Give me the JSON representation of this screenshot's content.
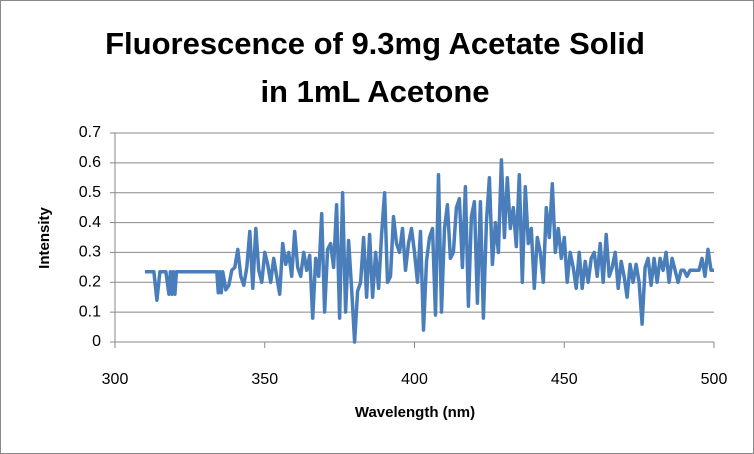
{
  "chart_data": {
    "type": "line",
    "title": [
      "Fluorescence of 9.3mg Acetate Solid",
      "in 1mL Acetone"
    ],
    "x_label": "Wavelength (nm)",
    "y_label": "Intensity",
    "xlim": [
      300,
      500
    ],
    "xticks": [
      300,
      350,
      400,
      450,
      500
    ],
    "ylim": [
      0,
      0.7
    ],
    "yticks": [
      0,
      0.1,
      0.2,
      0.3,
      0.4,
      0.5,
      0.6,
      0.7
    ],
    "grid": true,
    "x": [
      310,
      313,
      314,
      315,
      317,
      318,
      318.5,
      319,
      319.5,
      320,
      320.5,
      334,
      334.5,
      335,
      335.5,
      336,
      337,
      338,
      339,
      340,
      341,
      342,
      343,
      344,
      345,
      346,
      347,
      348,
      349,
      350,
      351,
      352,
      353,
      354,
      355,
      356,
      357,
      358,
      359,
      360,
      361,
      362,
      363,
      364,
      365,
      366,
      367,
      368,
      369,
      370,
      371,
      372,
      373,
      374,
      375,
      376,
      377,
      378,
      379,
      380,
      381,
      382,
      383,
      384,
      385,
      386,
      387,
      388,
      389,
      390,
      391,
      392,
      393,
      394,
      395,
      396,
      397,
      398,
      399,
      400,
      401,
      402,
      403,
      404,
      405,
      406,
      407,
      408,
      409,
      410,
      411,
      412,
      413,
      414,
      415,
      416,
      417,
      418,
      419,
      420,
      421,
      422,
      423,
      424,
      425,
      426,
      427,
      428,
      429,
      430,
      431,
      432,
      433,
      434,
      435,
      436,
      437,
      438,
      439,
      440,
      441,
      442,
      443,
      444,
      445,
      446,
      447,
      448,
      449,
      450,
      451,
      452,
      453,
      454,
      455,
      456,
      457,
      458,
      459,
      460,
      461,
      462,
      463,
      464,
      465,
      466,
      467,
      468,
      469,
      470,
      471,
      472,
      473,
      474,
      475,
      476,
      477,
      478,
      479,
      480,
      481,
      482,
      483,
      484,
      485,
      486,
      487,
      488,
      489,
      490,
      491,
      492,
      493,
      494,
      495,
      496,
      497,
      498,
      499,
      500
    ],
    "series": [
      {
        "color": "#4a7ebb",
        "values": [
          0.235,
          0.235,
          0.14,
          0.235,
          0.235,
          0.16,
          0.235,
          0.16,
          0.235,
          0.16,
          0.235,
          0.235,
          0.165,
          0.235,
          0.165,
          0.235,
          0.175,
          0.19,
          0.24,
          0.25,
          0.31,
          0.22,
          0.19,
          0.25,
          0.37,
          0.18,
          0.38,
          0.24,
          0.2,
          0.3,
          0.26,
          0.2,
          0.28,
          0.22,
          0.16,
          0.33,
          0.26,
          0.3,
          0.22,
          0.37,
          0.25,
          0.22,
          0.3,
          0.24,
          0.29,
          0.08,
          0.28,
          0.22,
          0.43,
          0.1,
          0.31,
          0.33,
          0.25,
          0.46,
          0.08,
          0.5,
          0.1,
          0.34,
          0.18,
          0.0,
          0.17,
          0.2,
          0.35,
          0.15,
          0.36,
          0.15,
          0.3,
          0.18,
          0.36,
          0.5,
          0.2,
          0.22,
          0.42,
          0.33,
          0.3,
          0.38,
          0.24,
          0.33,
          0.38,
          0.3,
          0.2,
          0.37,
          0.04,
          0.27,
          0.35,
          0.38,
          0.09,
          0.56,
          0.1,
          0.38,
          0.46,
          0.28,
          0.3,
          0.45,
          0.48,
          0.25,
          0.52,
          0.12,
          0.42,
          0.47,
          0.13,
          0.47,
          0.08,
          0.4,
          0.55,
          0.26,
          0.4,
          0.3,
          0.61,
          0.35,
          0.55,
          0.38,
          0.45,
          0.32,
          0.56,
          0.2,
          0.52,
          0.33,
          0.38,
          0.18,
          0.35,
          0.3,
          0.2,
          0.45,
          0.35,
          0.53,
          0.3,
          0.38,
          0.28,
          0.35,
          0.2,
          0.3,
          0.25,
          0.18,
          0.3,
          0.18,
          0.27,
          0.2,
          0.28,
          0.3,
          0.22,
          0.33,
          0.2,
          0.36,
          0.22,
          0.25,
          0.3,
          0.18,
          0.27,
          0.22,
          0.15,
          0.26,
          0.2,
          0.26,
          0.2,
          0.06,
          0.25,
          0.28,
          0.19,
          0.28,
          0.2,
          0.28,
          0.24,
          0.3,
          0.2,
          0.28,
          0.24,
          0.2,
          0.24,
          0.24,
          0.22,
          0.24,
          0.24,
          0.24,
          0.24,
          0.28,
          0.22,
          0.31,
          0.24,
          0.24
        ]
      }
    ]
  }
}
